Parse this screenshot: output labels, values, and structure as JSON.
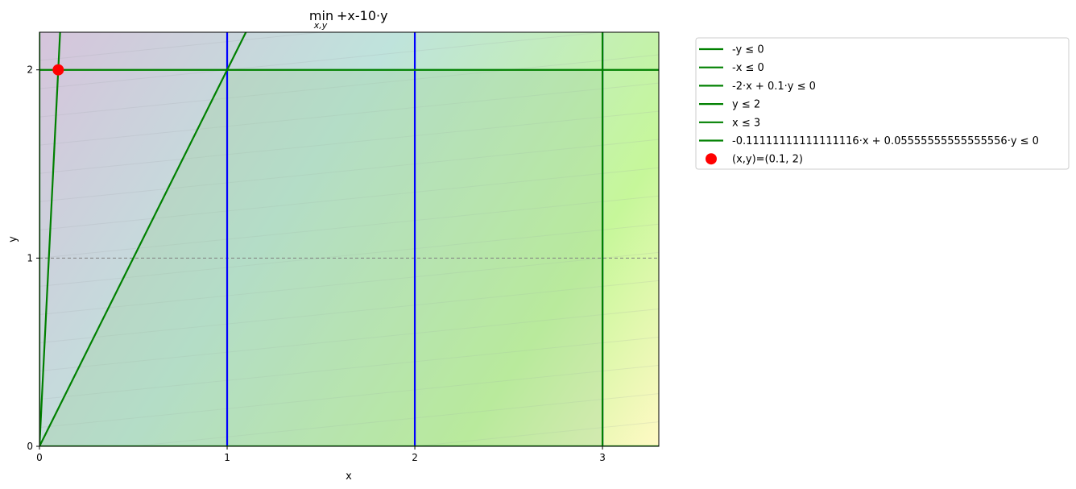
{
  "chart_data": {
    "type": "line",
    "title": "+x-10·y",
    "title_operator": "min",
    "title_operator_subscript": "x,y",
    "xlabel": "x",
    "ylabel": "y",
    "xlim": [
      0,
      3.3
    ],
    "ylim": [
      0,
      2.2
    ],
    "xticks": [
      0,
      1,
      2,
      3
    ],
    "yticks": [
      0,
      1,
      2
    ],
    "grid": false,
    "legend_position": "outside upper right",
    "constraints": [
      {
        "label": "-y  ≤  0",
        "color": "#008000",
        "kind": "line",
        "x": [
          0,
          3.3
        ],
        "y": [
          0,
          0
        ]
      },
      {
        "label": "-x  ≤  0",
        "color": "#008000",
        "kind": "line",
        "x": [
          0,
          0
        ],
        "y": [
          0,
          2.2
        ]
      },
      {
        "label": "-2·x + 0.1·y  ≤  0",
        "color": "#008000",
        "kind": "line",
        "x": [
          0,
          0.11
        ],
        "y": [
          0,
          2.2
        ]
      },
      {
        "label": "y  ≤  2",
        "color": "#008000",
        "kind": "line",
        "x": [
          0,
          3.3
        ],
        "y": [
          2,
          2
        ]
      },
      {
        "label": "x  ≤  3",
        "color": "#008000",
        "kind": "line",
        "x": [
          3,
          3
        ],
        "y": [
          0,
          2.2
        ]
      },
      {
        "label": "-0.11111111111111116·x + 0.05555555555555556·y  ≤  0",
        "color": "#008000",
        "kind": "line",
        "x": [
          0,
          1.1
        ],
        "y": [
          0,
          2.2
        ]
      }
    ],
    "optimum": {
      "label": "(x,y)=(0.1, 2)",
      "x": 0.1,
      "y": 2,
      "color": "#ff0000"
    },
    "vertical_lines": {
      "x": [
        1,
        2,
        3
      ],
      "color": "#0000ff"
    },
    "reference_line": {
      "y": 1,
      "color": "#808080",
      "style": "dashed"
    },
    "feasible_region": {
      "x": [
        0,
        1,
        3,
        3
      ],
      "y": [
        0,
        2,
        2,
        0
      ],
      "color": "#a0d0a0"
    }
  }
}
